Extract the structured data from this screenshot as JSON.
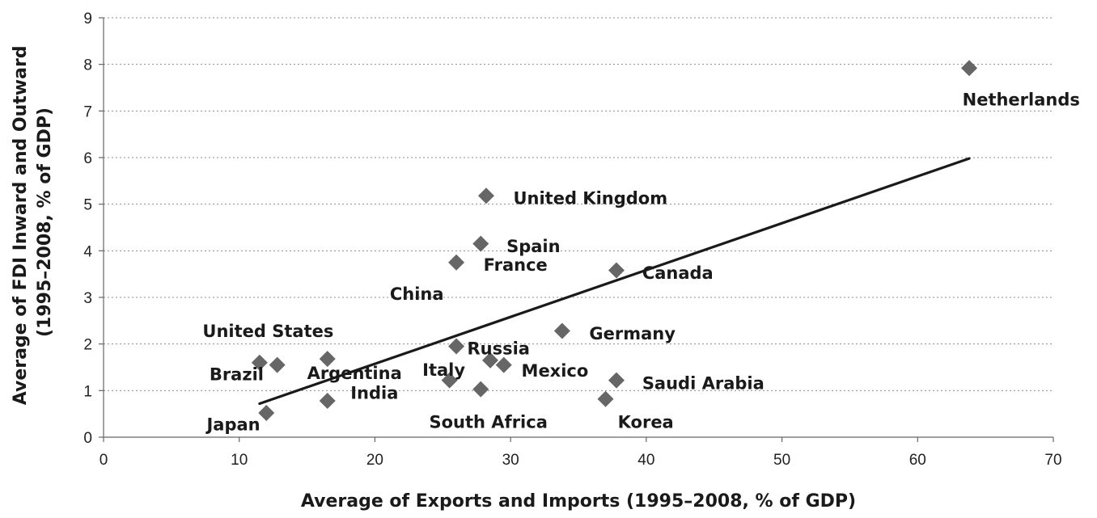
{
  "chart_data": {
    "type": "scatter",
    "xlabel": "Average of Exports and Imports (1995–2008, % of GDP)",
    "ylabel": [
      "Average of FDI Inward and Outward",
      "(1995–2008, % of GDP)"
    ],
    "xlim": [
      0,
      70
    ],
    "ylim": [
      0,
      9
    ],
    "xticks": [
      0,
      10,
      20,
      30,
      40,
      50,
      60,
      70
    ],
    "yticks": [
      0,
      1,
      2,
      3,
      4,
      5,
      6,
      7,
      8,
      9
    ],
    "grid": "horizontal dotted",
    "marker": "diamond",
    "marker_color": "#666666",
    "trendline": {
      "x": [
        11.5,
        63.8
      ],
      "y": [
        0.72,
        5.98
      ],
      "color": "#1a1a1a"
    },
    "points": [
      {
        "x": 11.5,
        "y": 1.6
      },
      {
        "x": 12.8,
        "y": 1.55
      },
      {
        "x": 12.0,
        "y": 0.52
      },
      {
        "x": 16.5,
        "y": 1.68
      },
      {
        "x": 16.5,
        "y": 0.78
      },
      {
        "x": 25.5,
        "y": 1.22
      },
      {
        "x": 26.0,
        "y": 3.75
      },
      {
        "x": 26.0,
        "y": 1.95
      },
      {
        "x": 27.8,
        "y": 4.15
      },
      {
        "x": 27.8,
        "y": 1.03
      },
      {
        "x": 28.2,
        "y": 5.18
      },
      {
        "x": 28.5,
        "y": 1.65
      },
      {
        "x": 29.5,
        "y": 1.55
      },
      {
        "x": 33.8,
        "y": 2.28
      },
      {
        "x": 37.0,
        "y": 0.82
      },
      {
        "x": 37.8,
        "y": 3.58
      },
      {
        "x": 37.8,
        "y": 1.22
      },
      {
        "x": 63.8,
        "y": 7.92
      }
    ],
    "labels": [
      {
        "text": "Brazil",
        "x": 7.8,
        "y": 1.22,
        "anchor": "start"
      },
      {
        "text": "United States",
        "x": 7.3,
        "y": 2.15,
        "anchor": "start"
      },
      {
        "text": "Japan",
        "x": 7.6,
        "y": 0.15,
        "anchor": "start"
      },
      {
        "text": "Argentina",
        "x": 15.0,
        "y": 1.25,
        "anchor": "start"
      },
      {
        "text": "India",
        "x": 18.2,
        "y": 0.82,
        "anchor": "start"
      },
      {
        "text": "Italy",
        "x": 23.5,
        "y": 1.32,
        "anchor": "start"
      },
      {
        "text": "China",
        "x": 21.1,
        "y": 2.95,
        "anchor": "start"
      },
      {
        "text": "Russia",
        "x": 26.8,
        "y": 1.78,
        "anchor": "start"
      },
      {
        "text": "South Africa",
        "x": 24.0,
        "y": 0.2,
        "anchor": "start"
      },
      {
        "text": "France",
        "x": 28.0,
        "y": 3.57,
        "anchor": "start"
      },
      {
        "text": "Spain",
        "x": 29.7,
        "y": 3.97,
        "anchor": "start"
      },
      {
        "text": "United Kingdom",
        "x": 30.2,
        "y": 5.0,
        "anchor": "start"
      },
      {
        "text": "Mexico",
        "x": 30.8,
        "y": 1.3,
        "anchor": "start"
      },
      {
        "text": "Germany",
        "x": 35.8,
        "y": 2.1,
        "anchor": "start"
      },
      {
        "text": "Korea",
        "x": 37.9,
        "y": 0.2,
        "anchor": "start"
      },
      {
        "text": "Canada",
        "x": 39.7,
        "y": 3.4,
        "anchor": "start"
      },
      {
        "text": "Saudi Arabia",
        "x": 39.7,
        "y": 1.03,
        "anchor": "start"
      },
      {
        "text": "Netherlands",
        "x": 63.3,
        "y": 7.12,
        "anchor": "start"
      }
    ]
  }
}
